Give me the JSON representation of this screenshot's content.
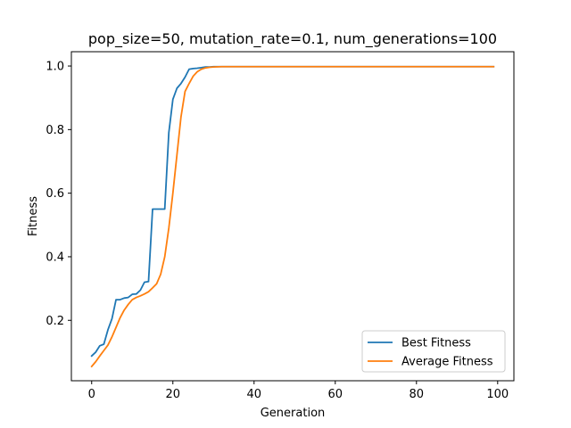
{
  "chart_data": {
    "type": "line",
    "title": "pop_size=50, mutation_rate=0.1, num_generations=100",
    "xlabel": "Generation",
    "ylabel": "Fitness",
    "xlim": [
      -5,
      104
    ],
    "ylim": [
      0.01,
      1.045
    ],
    "x_ticks": [
      0,
      20,
      40,
      60,
      80,
      100
    ],
    "y_ticks": [
      0.2,
      0.4,
      0.6,
      0.8,
      1.0
    ],
    "x_tick_labels": [
      "0",
      "20",
      "40",
      "60",
      "80",
      "100"
    ],
    "y_tick_labels": [
      "0.2",
      "0.4",
      "0.6",
      "0.8",
      "1.0"
    ],
    "grid": false,
    "legend_position": "lower right",
    "series": [
      {
        "name": "Best Fitness",
        "color": "#1f77b4",
        "x": [
          0,
          1,
          2,
          3,
          4,
          5,
          6,
          7,
          8,
          9,
          10,
          11,
          12,
          13,
          14,
          15,
          16,
          17,
          18,
          19,
          20,
          21,
          22,
          23,
          24,
          25,
          26,
          27,
          28,
          29,
          30,
          35,
          40,
          50,
          60,
          70,
          80,
          90,
          99
        ],
        "y": [
          0.088,
          0.1,
          0.12,
          0.125,
          0.17,
          0.205,
          0.265,
          0.265,
          0.27,
          0.272,
          0.282,
          0.283,
          0.295,
          0.32,
          0.322,
          0.55,
          0.55,
          0.55,
          0.55,
          0.79,
          0.895,
          0.93,
          0.945,
          0.965,
          0.99,
          0.992,
          0.993,
          0.995,
          0.997,
          0.997,
          0.998,
          0.998,
          0.998,
          0.998,
          0.998,
          0.998,
          0.998,
          0.998,
          0.998
        ]
      },
      {
        "name": "Average Fitness",
        "color": "#ff7f0e",
        "x": [
          0,
          1,
          2,
          3,
          4,
          5,
          6,
          7,
          8,
          9,
          10,
          11,
          12,
          13,
          14,
          15,
          16,
          17,
          18,
          19,
          20,
          21,
          22,
          23,
          24,
          25,
          26,
          27,
          28,
          29,
          30,
          32,
          35,
          40,
          50,
          60,
          70,
          80,
          90,
          99
        ],
        "y": [
          0.055,
          0.07,
          0.088,
          0.105,
          0.122,
          0.148,
          0.178,
          0.208,
          0.232,
          0.25,
          0.265,
          0.272,
          0.277,
          0.283,
          0.29,
          0.302,
          0.315,
          0.345,
          0.4,
          0.49,
          0.6,
          0.72,
          0.84,
          0.92,
          0.945,
          0.968,
          0.982,
          0.99,
          0.994,
          0.996,
          0.997,
          0.998,
          0.998,
          0.998,
          0.998,
          0.998,
          0.998,
          0.998,
          0.998,
          0.998
        ]
      }
    ]
  }
}
